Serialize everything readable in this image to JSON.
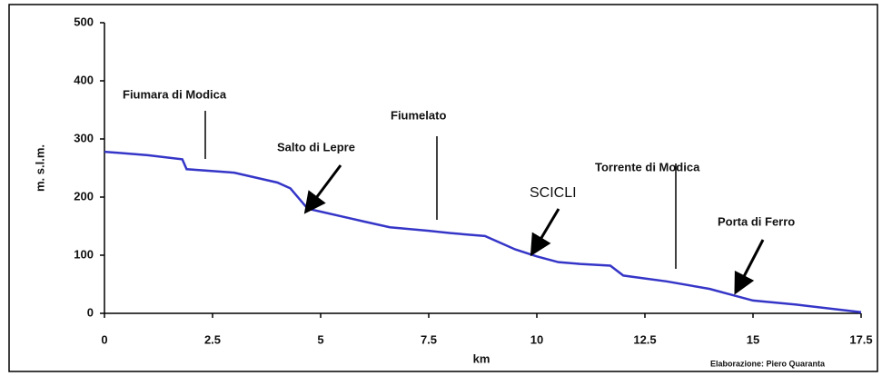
{
  "chart_data": {
    "type": "line",
    "x": [
      0,
      1,
      1.8,
      1.9,
      3,
      4,
      4.3,
      4.7,
      5,
      6,
      6.6,
      7.5,
      8,
      8.8,
      9.5,
      10,
      10.5,
      11,
      11.7,
      12,
      12.5,
      13,
      14,
      14.5,
      15,
      16,
      17.5
    ],
    "values": [
      278,
      272,
      265,
      248,
      242,
      225,
      215,
      180,
      175,
      158,
      148,
      142,
      138,
      133,
      110,
      98,
      88,
      85,
      82,
      65,
      60,
      55,
      42,
      32,
      22,
      15,
      2
    ],
    "color": "#3535c8",
    "xlabel": "km",
    "ylabel": "m. s.l.m.",
    "xlim": [
      0,
      17.5
    ],
    "xticks": [
      0,
      2.5,
      5,
      7.5,
      10,
      12.5,
      15,
      17.5
    ],
    "ylim": [
      0,
      500
    ],
    "yticks": [
      0,
      100,
      200,
      300,
      400,
      500
    ],
    "grid": false,
    "annotations": [
      "Fiumara di Modica",
      "Salto di Lepre",
      "Fiumelato",
      "SCICLI",
      "Torrente di Modica",
      "Porta di Ferro"
    ],
    "credit": "Elaborazione: Piero Quaranta"
  }
}
